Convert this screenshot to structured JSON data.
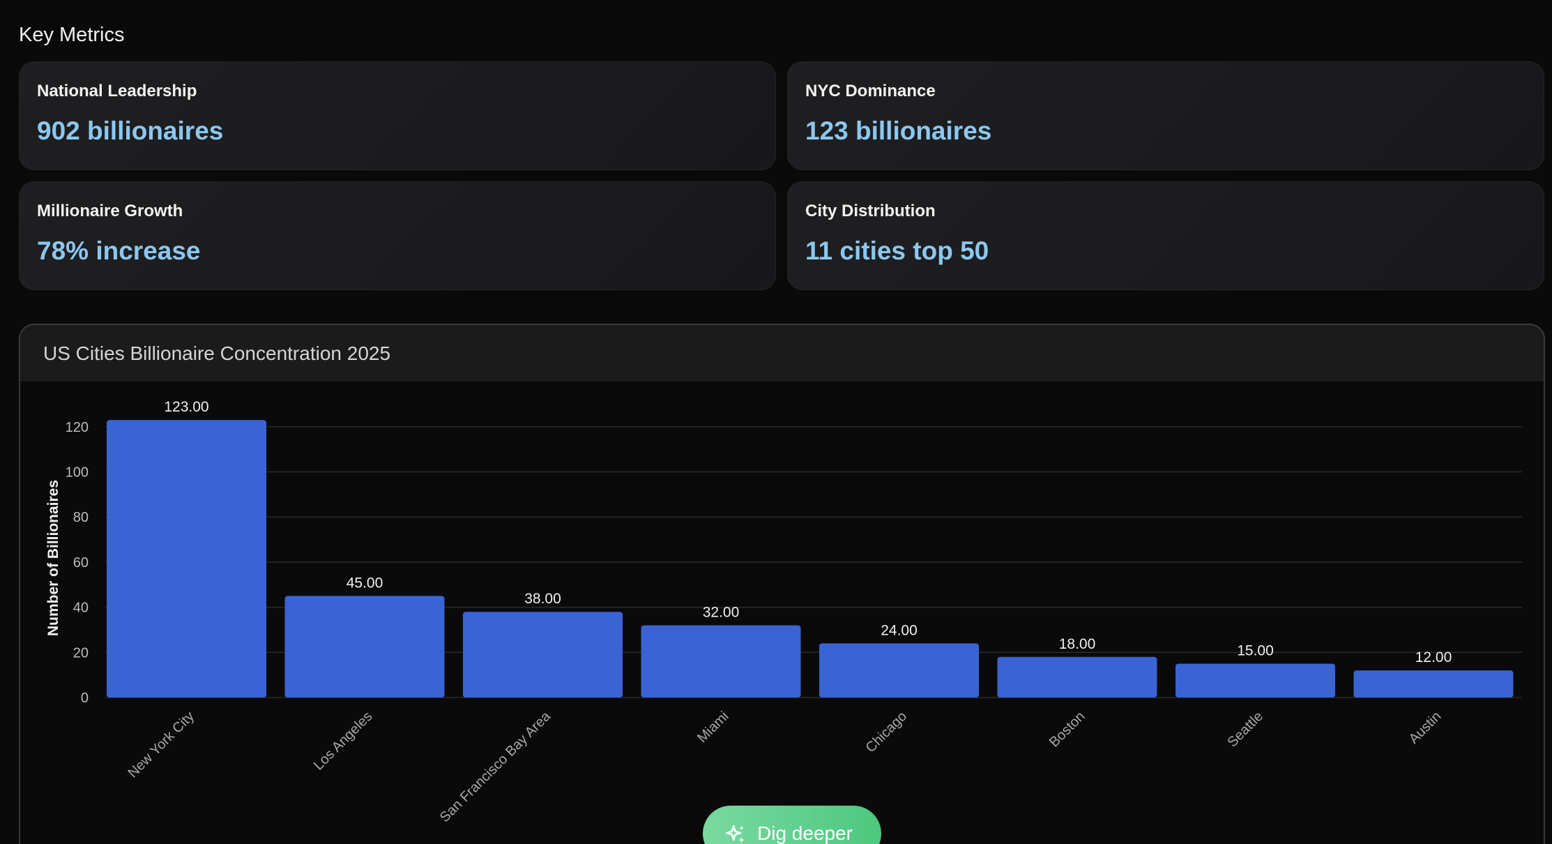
{
  "section_title": "Key Metrics",
  "metrics": [
    {
      "label": "National Leadership",
      "value": "902 billionaires"
    },
    {
      "label": "NYC Dominance",
      "value": "123 billionaires"
    },
    {
      "label": "Millionaire Growth",
      "value": "78% increase"
    },
    {
      "label": "City Distribution",
      "value": "11 cities top 50"
    }
  ],
  "chart_panel": {
    "title": "US Cities Billionaire Concentration 2025"
  },
  "dig_button": {
    "label": "Dig deeper",
    "icon": "sparkle-icon"
  },
  "colors": {
    "accent_value": "#8cc8f0",
    "bar": "#3a63d4",
    "button": "#5fd08c"
  },
  "chart_data": {
    "type": "bar",
    "title": "US Cities Billionaire Concentration 2025",
    "xlabel": "",
    "ylabel": "Number of Billionaires",
    "categories": [
      "New York City",
      "Los Angeles",
      "San Francisco Bay Area",
      "Miami",
      "Chicago",
      "Boston",
      "Seattle",
      "Austin"
    ],
    "values": [
      123,
      45,
      38,
      32,
      24,
      18,
      15,
      12
    ],
    "value_labels": [
      "123.00",
      "45.00",
      "38.00",
      "32.00",
      "24.00",
      "18.00",
      "15.00",
      "12.00"
    ],
    "yticks": [
      0,
      20,
      40,
      60,
      80,
      100,
      120
    ],
    "ylim": [
      0,
      128
    ],
    "grid": true,
    "legend": "none"
  }
}
